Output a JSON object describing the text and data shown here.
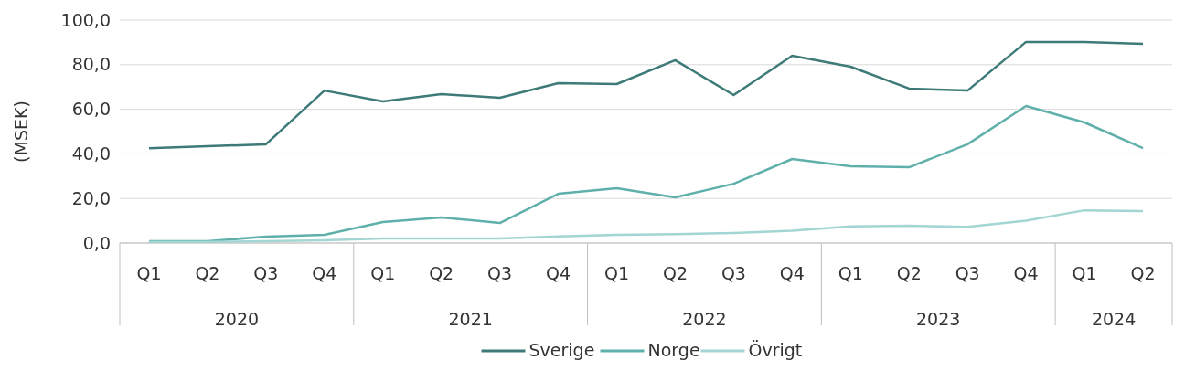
{
  "chart_data": {
    "type": "line",
    "ylabel": "(MSEK)",
    "categories": [
      "Q1",
      "Q2",
      "Q3",
      "Q4",
      "Q1",
      "Q2",
      "Q3",
      "Q4",
      "Q1",
      "Q2",
      "Q3",
      "Q4",
      "Q1",
      "Q2",
      "Q3",
      "Q4",
      "Q1",
      "Q2"
    ],
    "annotations": [
      "2020",
      "2021",
      "2022",
      "2023",
      "2024"
    ],
    "series": [
      {
        "name": "Sverige",
        "color": "#3d7a78",
        "values": [
          42.5,
          43.4,
          44.3,
          68.4,
          63.5,
          66.8,
          65.2,
          71.7,
          71.3,
          82,
          66.4,
          84,
          79.1,
          69.3,
          68.4,
          90.2,
          90.2,
          89.3
        ]
      },
      {
        "name": "Norge",
        "color": "#5fb0ab",
        "values": [
          0.8,
          0.8,
          2.9,
          3.7,
          9.4,
          11.5,
          9,
          22.1,
          24.6,
          20.5,
          26.6,
          37.7,
          34.4,
          34,
          44.3,
          61.5,
          54.1,
          42.6
        ]
      },
      {
        "name": "Övrigt",
        "color": "#a3d6d2",
        "values": [
          0.5,
          0.5,
          0.8,
          1.2,
          2,
          2,
          2,
          3,
          3.7,
          4,
          4.5,
          5.5,
          7.5,
          7.8,
          7.3,
          10,
          14.7,
          14.3
        ]
      }
    ],
    "ylim": [
      0,
      100
    ],
    "yticks": [
      {
        "value": 0,
        "label": "0,0"
      },
      {
        "value": 20,
        "label": "20,0"
      },
      {
        "value": 40,
        "label": "40,0"
      },
      {
        "value": 60,
        "label": "60,0"
      },
      {
        "value": 80,
        "label": "80,0"
      },
      {
        "value": 100,
        "label": "100,0"
      }
    ],
    "grid": "y",
    "legend": "bottom",
    "marker": "none",
    "line_style": "solid"
  }
}
